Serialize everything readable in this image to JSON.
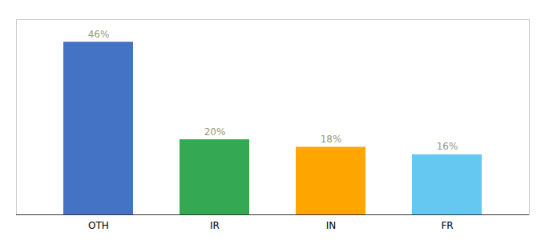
{
  "chart_data": {
    "type": "bar",
    "categories": [
      "OTH",
      "IR",
      "IN",
      "FR"
    ],
    "values": [
      46,
      20,
      18,
      16
    ],
    "value_labels": [
      "46%",
      "20%",
      "18%",
      "16%"
    ],
    "colors": [
      "#4472C4",
      "#34A853",
      "#FFA500",
      "#64C8F0"
    ],
    "ylim": [
      0,
      52
    ],
    "data_labels": true,
    "tick_labels": "x",
    "grid": false
  }
}
